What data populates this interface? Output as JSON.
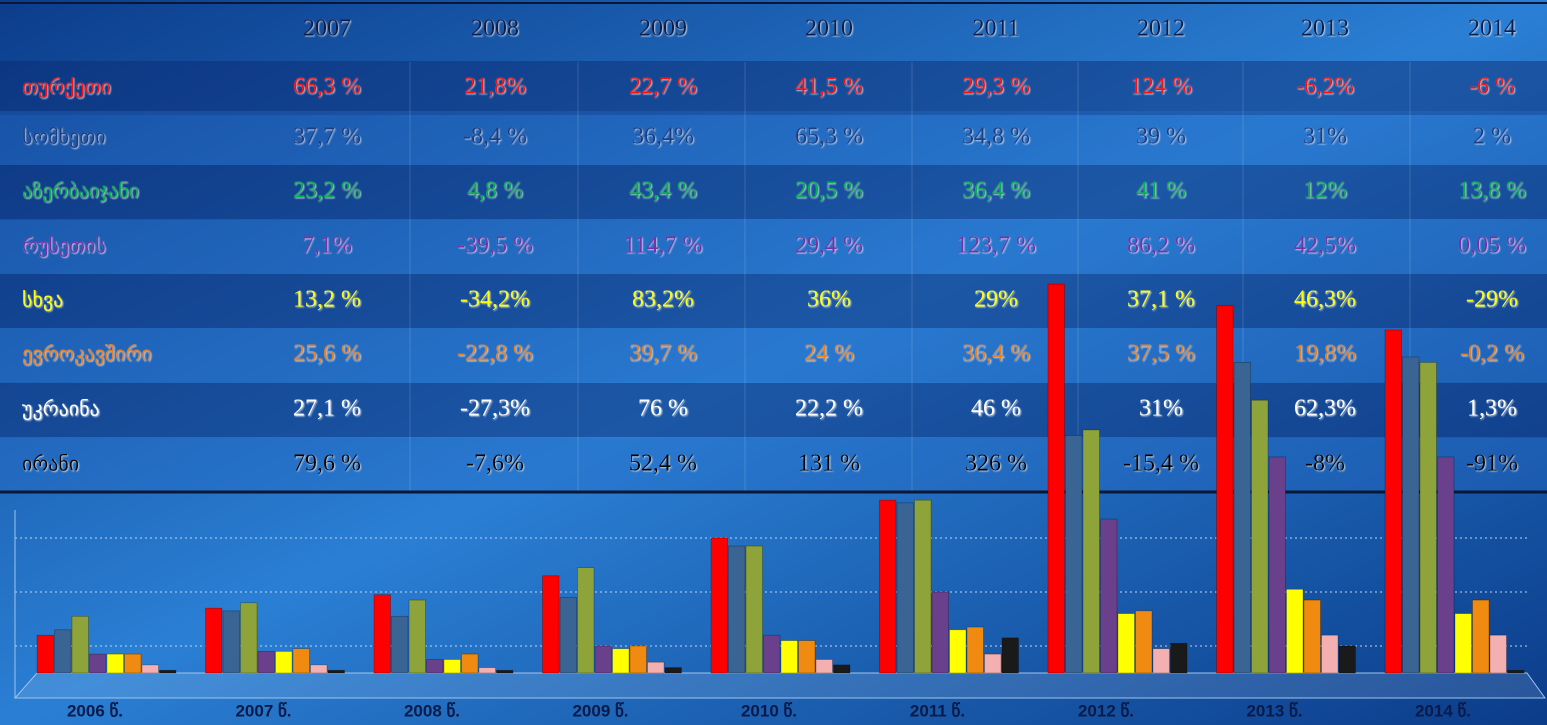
{
  "table": {
    "header": [
      2007,
      2008,
      2009,
      2010,
      2011,
      2012,
      2013,
      2014
    ],
    "rows": [
      {
        "name": "თურქეთი",
        "color": "#ff1010",
        "cells": [
          "66,3 %",
          "21,8%",
          "22,7 %",
          "41,5 %",
          "29,3 %",
          "124 %",
          "-6,2%",
          "-6 %"
        ]
      },
      {
        "name": "სომხეთი",
        "color": "#1c3c80",
        "cells": [
          "37,7 %",
          "-8,4 %",
          "36,4%",
          "65,3 %",
          "34,8 %",
          "39 %",
          "31%",
          "2 %"
        ]
      },
      {
        "name": "აზერბაიჯანი",
        "color": "#00b050",
        "cells": [
          "23,2 %",
          "4,8 %",
          "43,4 %",
          "20,5 %",
          "36,4 %",
          "41 %",
          "12%",
          "13,8 %"
        ]
      },
      {
        "name": "რუსეთის",
        "color": "#7a2fa8",
        "cells": [
          "7,1%",
          "-39,5 %",
          "114,7 %",
          "29,4 %",
          "123,7 %",
          "86,2 %",
          "42,5%",
          "0,05 %"
        ]
      },
      {
        "name": "სხვა",
        "color": "#ffff00",
        "cells": [
          "13,2 %",
          "-34,2%",
          "83,2%",
          "36%",
          "29%",
          "37,1 %",
          "46,3%",
          "-29%"
        ]
      },
      {
        "name": "ევროკავშირი",
        "color": "#e8801e",
        "cells": [
          "25,6 %",
          "-22,8 %",
          "39,7 %",
          "24 %",
          "36,4 %",
          "37,5 %",
          "19,8%",
          "-0,2 %"
        ]
      },
      {
        "name": "უკრაინა",
        "color": "#ffffff",
        "cells": [
          "27,1 %",
          "-27,3%",
          "76 %",
          "22,2 %",
          "46 %",
          "31%",
          "62,3%",
          "1,3%"
        ]
      },
      {
        "name": "ირანი",
        "color": "#000000",
        "cells": [
          "79,6 %",
          "-7,6%",
          "52,4 %",
          "131 %",
          "326 %",
          "-15,4 %",
          "-8%",
          "-91%"
        ]
      }
    ]
  },
  "chart_data": {
    "type": "bar",
    "categories": [
      "2006 წ.",
      "2007 წ.",
      "2008 წ.",
      "2009 წ.",
      "2010 წ.",
      "2011 წ.",
      "2012 წ.",
      "2013 წ.",
      "2014 წ."
    ],
    "series": [
      {
        "color": "#ff0000",
        "values": [
          14,
          24,
          29,
          36,
          50,
          64,
          144,
          136,
          127
        ]
      },
      {
        "color": "#3a6494",
        "values": [
          16,
          23,
          21,
          28,
          47,
          63,
          88,
          115,
          117
        ]
      },
      {
        "color": "#8ea33a",
        "values": [
          21,
          26,
          27,
          39,
          47,
          64,
          90,
          101,
          115
        ]
      },
      {
        "color": "#6a3f8c",
        "values": [
          7,
          8,
          5,
          10,
          14,
          30,
          57,
          80,
          80
        ]
      },
      {
        "color": "#ffff00",
        "values": [
          7,
          8,
          5,
          9,
          12,
          16,
          22,
          31,
          22
        ]
      },
      {
        "color": "#f08a10",
        "values": [
          7,
          9,
          7,
          10,
          12,
          17,
          23,
          27,
          27
        ]
      },
      {
        "color": "#f4b0b0",
        "values": [
          3,
          3,
          2,
          4,
          5,
          7,
          9,
          14,
          14
        ]
      },
      {
        "color": "#1a1a1a",
        "values": [
          1,
          1,
          1,
          2,
          3,
          13,
          11,
          10,
          1
        ]
      }
    ],
    "ylim": [
      0,
      144.4
    ],
    "yticks": [
      10,
      30,
      50
    ],
    "grid": true
  }
}
